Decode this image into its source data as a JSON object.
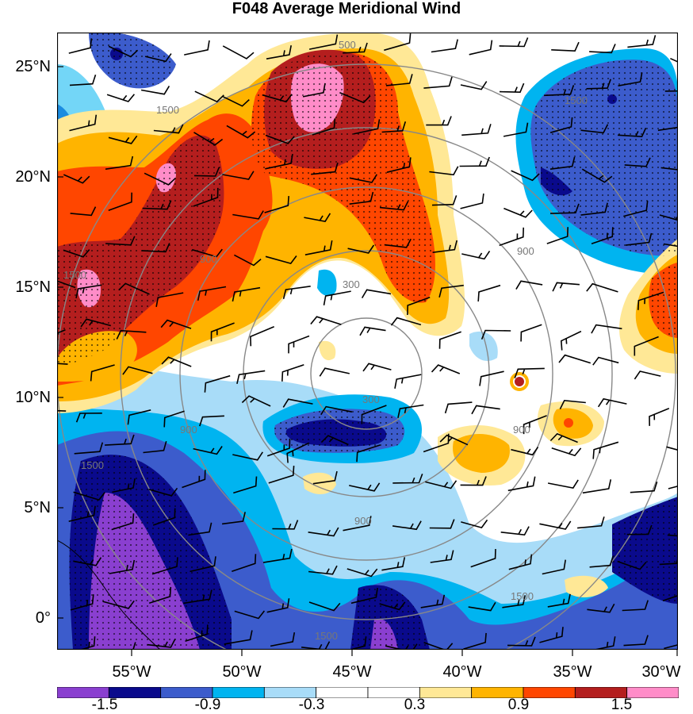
{
  "title": "F048 Average Meridional Wind",
  "lat_labels": [
    "25°N",
    "20°N",
    "15°N",
    "10°N",
    "5°N",
    "0°"
  ],
  "lon_labels": [
    "55°W",
    "50°W",
    "45°W",
    "40°W",
    "35°W",
    "30°W"
  ],
  "colorbar": {
    "labels": [
      "-1.5",
      "-0.9",
      "-0.3",
      "0.3",
      "0.9",
      "1.5"
    ],
    "colors": [
      "#8a3fd0",
      "#0a0a8c",
      "#3c5ccc",
      "#00b4f0",
      "#a8dcf8",
      "#ffffff",
      "#ffffff",
      "#ffe896",
      "#ffb400",
      "#ff4600",
      "#b41e1e",
      "#ff8cc8"
    ]
  },
  "contour_labels": [
    "500",
    "1500",
    "1500",
    "900",
    "300",
    "300",
    "900",
    "900",
    "900",
    "1500",
    "1500",
    "1500",
    "1500",
    "900"
  ],
  "colors": {
    "strong_negative": "#8a3fd0",
    "negative": "#0a0a8c",
    "weak_negative": "#3c5ccc",
    "light_blue": "#00b4f0",
    "pale_blue": "#a8dcf8",
    "yellow": "#ffe896",
    "orange": "#ffb400",
    "red_orange": "#ff4600",
    "dark_red": "#b41e1e",
    "pink": "#ff8cc8"
  }
}
